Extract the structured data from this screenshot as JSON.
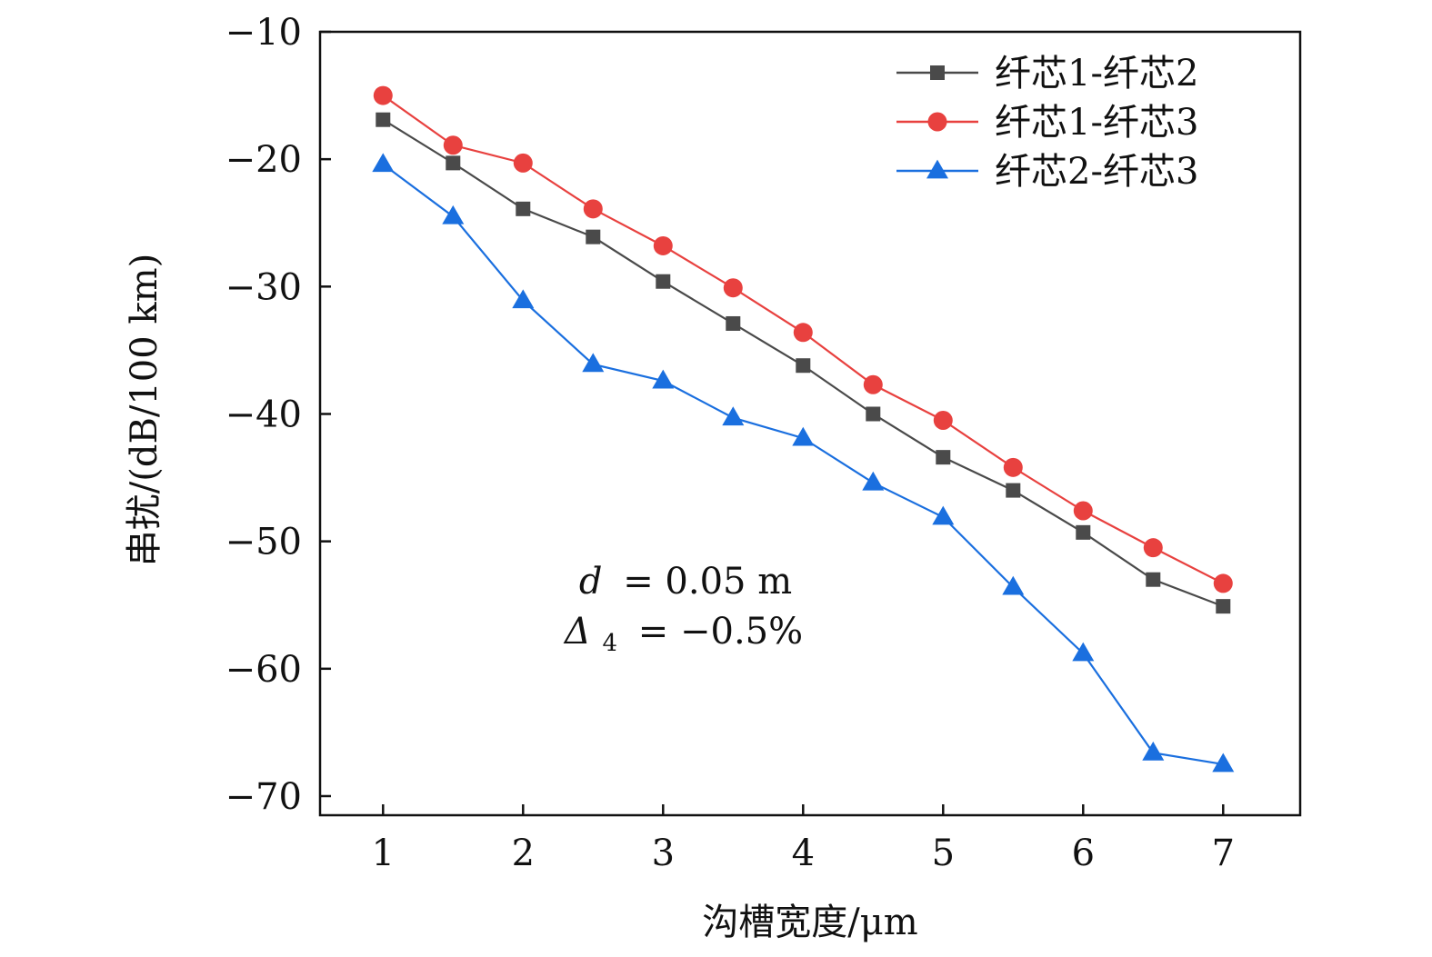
{
  "chart_data": {
    "type": "line",
    "title": "",
    "xlabel": "沟槽宽度/μm",
    "ylabel": "串扰/(dB/100 km)",
    "xlim": [
      0.55,
      7.55
    ],
    "ylim": [
      -71.5,
      -10
    ],
    "x_ticks": [
      1,
      2,
      3,
      4,
      5,
      6,
      7
    ],
    "x_tick_labels": [
      "1",
      "2",
      "3",
      "4",
      "5",
      "6",
      "7"
    ],
    "y_ticks": [
      -10,
      -20,
      -30,
      -40,
      -50,
      -60,
      -70
    ],
    "y_tick_labels": [
      "−10",
      "−20",
      "−30",
      "−40",
      "−50",
      "−60",
      "−70"
    ],
    "grid": false,
    "legend_position": "top-right",
    "x": [
      1,
      1.5,
      2,
      2.5,
      3,
      3.5,
      4,
      4.5,
      5,
      5.5,
      6,
      6.5,
      7
    ],
    "series": [
      {
        "name": "纤芯1-纤芯2",
        "color": "#4a4a4a",
        "marker": "square",
        "values": [
          -16.9,
          -20.3,
          -23.9,
          -26.1,
          -29.6,
          -32.9,
          -36.2,
          -40.0,
          -43.4,
          -46.0,
          -49.3,
          -53.0,
          -55.1
        ]
      },
      {
        "name": "纤芯1-纤芯3",
        "color": "#e8413f",
        "marker": "circle",
        "values": [
          -15.0,
          -18.9,
          -20.3,
          -23.9,
          -26.8,
          -30.1,
          -33.6,
          -37.7,
          -40.5,
          -44.2,
          -47.6,
          -50.5,
          -53.3
        ]
      },
      {
        "name": "纤芯2-纤芯3",
        "color": "#1a6fdf",
        "marker": "triangle",
        "values": [
          -20.4,
          -24.5,
          -31.1,
          -36.1,
          -37.4,
          -40.3,
          -41.9,
          -45.4,
          -48.1,
          -53.6,
          -58.8,
          -66.6,
          -67.5
        ]
      }
    ],
    "annotations": {
      "line1_var": "d",
      "line1_rest": "= 0.05 m",
      "line2_var": "Δ",
      "line2_sub": "4",
      "line2_rest": "= −0.5%"
    }
  }
}
